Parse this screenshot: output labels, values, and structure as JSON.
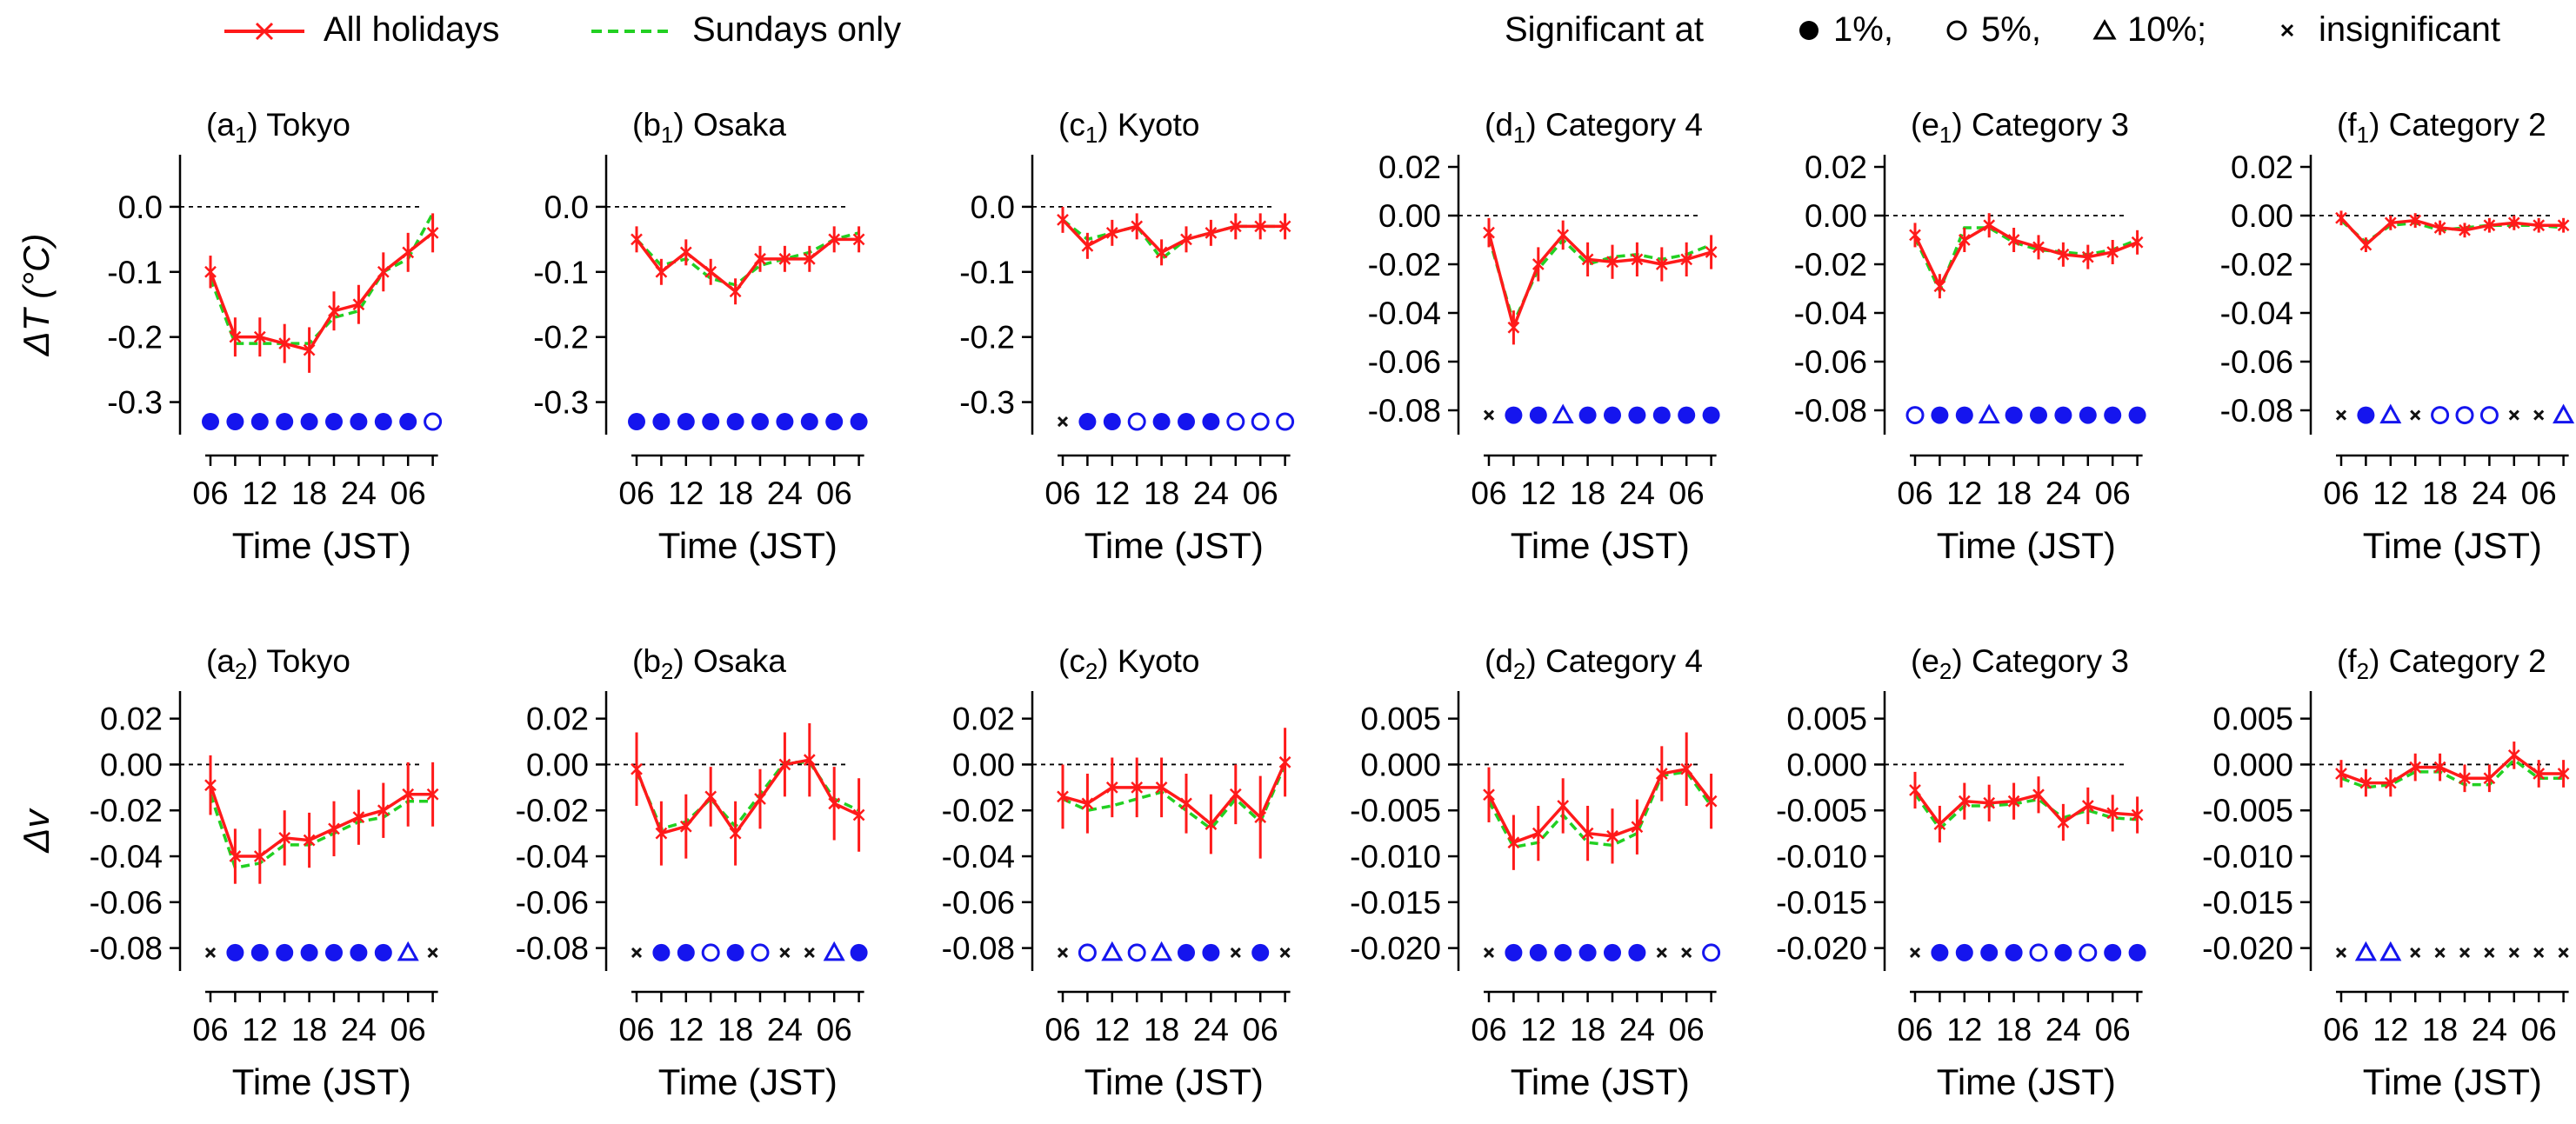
{
  "legend": {
    "all_holidays": "All holidays",
    "sundays_only": "Sundays only",
    "significant_prefix": "Significant at",
    "sig_1": "1%,",
    "sig_5": "5%,",
    "sig_10": "10%;",
    "sig_none": "insignificant"
  },
  "colors": {
    "all_holidays": "#ff1a1a",
    "sundays_only": "#22d022",
    "marker": "#1515ee",
    "insignificant": "#111111",
    "axis": "#000000"
  },
  "x_tick_labels": [
    "06",
    "12",
    "18",
    "24",
    "06"
  ],
  "chart_data": [
    {
      "id": "a1",
      "type": "line",
      "panel_letter": "a",
      "panel_sub": "1",
      "title": "Tokyo",
      "xlabel": "Time (JST)",
      "ylabel": "ΔT (°C)",
      "ylim": [
        -0.35,
        0.08
      ],
      "yticks": [
        0.0,
        -0.1,
        -0.2,
        -0.3
      ],
      "ytick_labels": [
        "0.0",
        "-0.1",
        "-0.2",
        "-0.3"
      ],
      "sig_level": -0.33,
      "x": [
        1,
        2,
        3,
        4,
        5,
        6,
        7,
        8,
        9,
        10
      ],
      "series": [
        {
          "name": "All holidays",
          "values": [
            -0.1,
            -0.2,
            -0.2,
            -0.21,
            -0.22,
            -0.16,
            -0.15,
            -0.1,
            -0.07,
            -0.04
          ],
          "errors": [
            0.025,
            0.03,
            0.03,
            0.03,
            0.035,
            0.03,
            0.03,
            0.03,
            0.03,
            0.03
          ]
        },
        {
          "name": "Sundays only",
          "values": [
            -0.11,
            -0.21,
            -0.21,
            -0.21,
            -0.21,
            -0.17,
            -0.16,
            -0.1,
            -0.08,
            -0.01
          ]
        }
      ],
      "significance": [
        "1%",
        "1%",
        "1%",
        "1%",
        "1%",
        "1%",
        "1%",
        "1%",
        "1%",
        "5%"
      ]
    },
    {
      "id": "b1",
      "type": "line",
      "panel_letter": "b",
      "panel_sub": "1",
      "title": "Osaka",
      "xlabel": "Time (JST)",
      "ylabel": "",
      "ylim": [
        -0.35,
        0.08
      ],
      "yticks": [
        0.0,
        -0.1,
        -0.2,
        -0.3
      ],
      "ytick_labels": [
        "0.0",
        "-0.1",
        "-0.2",
        "-0.3"
      ],
      "sig_level": -0.33,
      "x": [
        1,
        2,
        3,
        4,
        5,
        6,
        7,
        8,
        9,
        10
      ],
      "series": [
        {
          "name": "All holidays",
          "values": [
            -0.05,
            -0.1,
            -0.07,
            -0.1,
            -0.13,
            -0.08,
            -0.08,
            -0.08,
            -0.05,
            -0.05
          ],
          "errors": [
            0.02,
            0.02,
            0.02,
            0.02,
            0.02,
            0.02,
            0.02,
            0.02,
            0.02,
            0.02
          ]
        },
        {
          "name": "Sundays only",
          "values": [
            -0.05,
            -0.09,
            -0.08,
            -0.11,
            -0.12,
            -0.09,
            -0.08,
            -0.07,
            -0.05,
            -0.04
          ]
        }
      ],
      "significance": [
        "1%",
        "1%",
        "1%",
        "1%",
        "1%",
        "1%",
        "1%",
        "1%",
        "1%",
        "1%"
      ]
    },
    {
      "id": "c1",
      "type": "line",
      "panel_letter": "c",
      "panel_sub": "1",
      "title": "Kyoto",
      "xlabel": "Time (JST)",
      "ylabel": "",
      "ylim": [
        -0.35,
        0.08
      ],
      "yticks": [
        0.0,
        -0.1,
        -0.2,
        -0.3
      ],
      "ytick_labels": [
        "0.0",
        "-0.1",
        "-0.2",
        "-0.3"
      ],
      "sig_level": -0.33,
      "x": [
        1,
        2,
        3,
        4,
        5,
        6,
        7,
        8,
        9,
        10
      ],
      "series": [
        {
          "name": "All holidays",
          "values": [
            -0.02,
            -0.06,
            -0.04,
            -0.03,
            -0.07,
            -0.05,
            -0.04,
            -0.03,
            -0.03,
            -0.03
          ],
          "errors": [
            0.02,
            0.02,
            0.02,
            0.02,
            0.02,
            0.02,
            0.02,
            0.02,
            0.02,
            0.02
          ]
        },
        {
          "name": "Sundays only",
          "values": [
            -0.02,
            -0.05,
            -0.04,
            -0.03,
            -0.08,
            -0.05,
            -0.04,
            -0.03,
            -0.03,
            -0.03
          ]
        }
      ],
      "significance": [
        "none",
        "1%",
        "1%",
        "5%",
        "1%",
        "1%",
        "1%",
        "5%",
        "5%",
        "5%"
      ]
    },
    {
      "id": "d1",
      "type": "line",
      "panel_letter": "d",
      "panel_sub": "1",
      "title": "Category 4",
      "xlabel": "Time (JST)",
      "ylabel": "",
      "ylim": [
        -0.09,
        0.025
      ],
      "yticks": [
        0.02,
        0.0,
        -0.02,
        -0.04,
        -0.06,
        -0.08
      ],
      "ytick_labels": [
        "0.02",
        "0.00",
        "-0.02",
        "-0.04",
        "-0.06",
        "-0.08"
      ],
      "sig_level": -0.082,
      "x": [
        1,
        2,
        3,
        4,
        5,
        6,
        7,
        8,
        9,
        10
      ],
      "series": [
        {
          "name": "All holidays",
          "values": [
            -0.007,
            -0.046,
            -0.02,
            -0.008,
            -0.018,
            -0.019,
            -0.018,
            -0.02,
            -0.018,
            -0.015
          ],
          "errors": [
            0.006,
            0.007,
            0.007,
            0.006,
            0.007,
            0.007,
            0.007,
            0.007,
            0.007,
            0.007
          ]
        },
        {
          "name": "Sundays only",
          "values": [
            -0.009,
            -0.044,
            -0.022,
            -0.01,
            -0.02,
            -0.017,
            -0.016,
            -0.018,
            -0.016,
            -0.012
          ]
        }
      ],
      "significance": [
        "none",
        "1%",
        "1%",
        "10%",
        "1%",
        "1%",
        "1%",
        "1%",
        "1%",
        "1%"
      ]
    },
    {
      "id": "e1",
      "type": "line",
      "panel_letter": "e",
      "panel_sub": "1",
      "title": "Category 3",
      "xlabel": "Time (JST)",
      "ylabel": "",
      "ylim": [
        -0.09,
        0.025
      ],
      "yticks": [
        0.02,
        0.0,
        -0.02,
        -0.04,
        -0.06,
        -0.08
      ],
      "ytick_labels": [
        "0.02",
        "0.00",
        "-0.02",
        "-0.04",
        "-0.06",
        "-0.08"
      ],
      "sig_level": -0.082,
      "x": [
        1,
        2,
        3,
        4,
        5,
        6,
        7,
        8,
        9,
        10
      ],
      "series": [
        {
          "name": "All holidays",
          "values": [
            -0.008,
            -0.029,
            -0.01,
            -0.004,
            -0.01,
            -0.013,
            -0.016,
            -0.017,
            -0.015,
            -0.011
          ],
          "errors": [
            0.005,
            0.005,
            0.005,
            0.005,
            0.005,
            0.005,
            0.005,
            0.005,
            0.005,
            0.005
          ]
        },
        {
          "name": "Sundays only",
          "values": [
            -0.009,
            -0.031,
            -0.005,
            -0.005,
            -0.011,
            -0.014,
            -0.015,
            -0.016,
            -0.014,
            -0.01
          ]
        }
      ],
      "significance": [
        "5%",
        "1%",
        "1%",
        "10%",
        "1%",
        "1%",
        "1%",
        "1%",
        "1%",
        "1%"
      ]
    },
    {
      "id": "f1",
      "type": "line",
      "panel_letter": "f",
      "panel_sub": "1",
      "title": "Category 2",
      "xlabel": "Time (JST)",
      "ylabel": "",
      "ylim": [
        -0.09,
        0.025
      ],
      "yticks": [
        0.02,
        0.0,
        -0.02,
        -0.04,
        -0.06,
        -0.08
      ],
      "ytick_labels": [
        "0.02",
        "0.00",
        "-0.02",
        "-0.04",
        "-0.06",
        "-0.08"
      ],
      "sig_level": -0.082,
      "x": [
        1,
        2,
        3,
        4,
        5,
        6,
        7,
        8,
        9,
        10
      ],
      "series": [
        {
          "name": "All holidays",
          "values": [
            -0.001,
            -0.012,
            -0.003,
            -0.002,
            -0.005,
            -0.006,
            -0.004,
            -0.003,
            -0.004,
            -0.004
          ],
          "errors": [
            0.003,
            0.003,
            0.003,
            0.003,
            0.003,
            0.003,
            0.003,
            0.003,
            0.003,
            0.003
          ]
        },
        {
          "name": "Sundays only",
          "values": [
            -0.002,
            -0.011,
            -0.004,
            -0.003,
            -0.006,
            -0.005,
            -0.004,
            -0.004,
            -0.004,
            -0.005
          ]
        }
      ],
      "significance": [
        "none",
        "1%",
        "10%",
        "none",
        "5%",
        "5%",
        "5%",
        "none",
        "none",
        "10%"
      ]
    },
    {
      "id": "a2",
      "type": "line",
      "panel_letter": "a",
      "panel_sub": "2",
      "title": "Tokyo",
      "xlabel": "Time (JST)",
      "ylabel": "Δv",
      "ylim": [
        -0.09,
        0.032
      ],
      "yticks": [
        0.02,
        0.0,
        -0.02,
        -0.04,
        -0.06,
        -0.08
      ],
      "ytick_labels": [
        "0.02",
        "0.00",
        "-0.02",
        "-0.04",
        "-0.06",
        "-0.08"
      ],
      "sig_level": -0.082,
      "x": [
        1,
        2,
        3,
        4,
        5,
        6,
        7,
        8,
        9,
        10
      ],
      "series": [
        {
          "name": "All holidays",
          "values": [
            -0.009,
            -0.04,
            -0.04,
            -0.032,
            -0.033,
            -0.028,
            -0.023,
            -0.02,
            -0.013,
            -0.013
          ],
          "errors": [
            0.013,
            0.012,
            0.012,
            0.012,
            0.012,
            0.012,
            0.012,
            0.012,
            0.014,
            0.014
          ]
        },
        {
          "name": "Sundays only",
          "values": [
            -0.013,
            -0.045,
            -0.043,
            -0.035,
            -0.035,
            -0.03,
            -0.025,
            -0.023,
            -0.016,
            -0.016
          ]
        }
      ],
      "significance": [
        "none",
        "1%",
        "1%",
        "1%",
        "1%",
        "1%",
        "1%",
        "1%",
        "10%",
        "none"
      ]
    },
    {
      "id": "b2",
      "type": "line",
      "panel_letter": "b",
      "panel_sub": "2",
      "title": "Osaka",
      "xlabel": "Time (JST)",
      "ylabel": "",
      "ylim": [
        -0.09,
        0.032
      ],
      "yticks": [
        0.02,
        0.0,
        -0.02,
        -0.04,
        -0.06,
        -0.08
      ],
      "ytick_labels": [
        "0.02",
        "0.00",
        "-0.02",
        "-0.04",
        "-0.06",
        "-0.08"
      ],
      "sig_level": -0.082,
      "x": [
        1,
        2,
        3,
        4,
        5,
        6,
        7,
        8,
        9,
        10
      ],
      "series": [
        {
          "name": "All holidays",
          "values": [
            -0.002,
            -0.03,
            -0.027,
            -0.014,
            -0.03,
            -0.015,
            0.0,
            0.002,
            -0.017,
            -0.022
          ],
          "errors": [
            0.016,
            0.014,
            0.014,
            0.013,
            0.014,
            0.013,
            0.014,
            0.016,
            0.016,
            0.016
          ]
        },
        {
          "name": "Sundays only",
          "values": [
            -0.003,
            -0.028,
            -0.025,
            -0.015,
            -0.027,
            -0.013,
            0.001,
            0.001,
            -0.015,
            -0.02
          ]
        }
      ],
      "significance": [
        "none",
        "1%",
        "1%",
        "5%",
        "1%",
        "5%",
        "none",
        "none",
        "10%",
        "1%"
      ]
    },
    {
      "id": "c2",
      "type": "line",
      "panel_letter": "c",
      "panel_sub": "2",
      "title": "Kyoto",
      "xlabel": "Time (JST)",
      "ylabel": "",
      "ylim": [
        -0.09,
        0.032
      ],
      "yticks": [
        0.02,
        0.0,
        -0.02,
        -0.04,
        -0.06,
        -0.08
      ],
      "ytick_labels": [
        "0.02",
        "0.00",
        "-0.02",
        "-0.04",
        "-0.06",
        "-0.08"
      ],
      "sig_level": -0.082,
      "x": [
        1,
        2,
        3,
        4,
        5,
        6,
        7,
        8,
        9,
        10
      ],
      "series": [
        {
          "name": "All holidays",
          "values": [
            -0.014,
            -0.017,
            -0.01,
            -0.01,
            -0.01,
            -0.017,
            -0.026,
            -0.013,
            -0.023,
            0.001
          ],
          "errors": [
            0.014,
            0.013,
            0.013,
            0.013,
            0.013,
            0.013,
            0.013,
            0.013,
            0.018,
            0.015
          ]
        },
        {
          "name": "Sundays only",
          "values": [
            -0.015,
            -0.02,
            -0.018,
            -0.015,
            -0.012,
            -0.02,
            -0.028,
            -0.015,
            -0.025,
            0.0
          ]
        }
      ],
      "significance": [
        "none",
        "5%",
        "10%",
        "5%",
        "10%",
        "1%",
        "1%",
        "none",
        "1%",
        "none"
      ]
    },
    {
      "id": "d2",
      "type": "line",
      "panel_letter": "d",
      "panel_sub": "2",
      "title": "Category 4",
      "xlabel": "Time (JST)",
      "ylabel": "",
      "ylim": [
        -0.0225,
        0.008
      ],
      "yticks": [
        0.005,
        0.0,
        -0.005,
        -0.01,
        -0.015,
        -0.02
      ],
      "ytick_labels": [
        "0.005",
        "0.000",
        "-0.005",
        "-0.010",
        "-0.015",
        "-0.020"
      ],
      "sig_level": -0.0205,
      "x": [
        1,
        2,
        3,
        4,
        5,
        6,
        7,
        8,
        9,
        10
      ],
      "series": [
        {
          "name": "All holidays",
          "values": [
            -0.0033,
            -0.0085,
            -0.0075,
            -0.0045,
            -0.0075,
            -0.0078,
            -0.0068,
            -0.001,
            -0.0005,
            -0.004
          ],
          "errors": [
            0.003,
            0.003,
            0.003,
            0.003,
            0.003,
            0.003,
            0.003,
            0.003,
            0.004,
            0.003
          ]
        },
        {
          "name": "Sundays only",
          "values": [
            -0.004,
            -0.009,
            -0.0085,
            -0.0055,
            -0.0085,
            -0.0088,
            -0.0075,
            -0.0012,
            -0.0008,
            -0.0045
          ]
        }
      ],
      "significance": [
        "none",
        "1%",
        "1%",
        "1%",
        "1%",
        "1%",
        "1%",
        "none",
        "none",
        "5%"
      ]
    },
    {
      "id": "e2",
      "type": "line",
      "panel_letter": "e",
      "panel_sub": "2",
      "title": "Category 3",
      "xlabel": "Time (JST)",
      "ylabel": "",
      "ylim": [
        -0.0225,
        0.008
      ],
      "yticks": [
        0.005,
        0.0,
        -0.005,
        -0.01,
        -0.015,
        -0.02
      ],
      "ytick_labels": [
        "0.005",
        "0.000",
        "-0.005",
        "-0.010",
        "-0.015",
        "-0.020"
      ],
      "sig_level": -0.0205,
      "x": [
        1,
        2,
        3,
        4,
        5,
        6,
        7,
        8,
        9,
        10
      ],
      "series": [
        {
          "name": "All holidays",
          "values": [
            -0.0028,
            -0.0065,
            -0.004,
            -0.0042,
            -0.004,
            -0.0033,
            -0.0063,
            -0.0045,
            -0.0053,
            -0.0055
          ],
          "errors": [
            0.002,
            0.002,
            0.002,
            0.002,
            0.002,
            0.002,
            0.002,
            0.002,
            0.002,
            0.002
          ]
        },
        {
          "name": "Sundays only",
          "values": [
            -0.0032,
            -0.007,
            -0.0045,
            -0.0045,
            -0.0043,
            -0.0038,
            -0.0058,
            -0.005,
            -0.0058,
            -0.006
          ]
        }
      ],
      "significance": [
        "none",
        "1%",
        "1%",
        "1%",
        "1%",
        "5%",
        "1%",
        "5%",
        "1%",
        "1%"
      ]
    },
    {
      "id": "f2",
      "type": "line",
      "panel_letter": "f",
      "panel_sub": "2",
      "title": "Category 2",
      "xlabel": "Time (JST)",
      "ylabel": "",
      "ylim": [
        -0.0225,
        0.008
      ],
      "yticks": [
        0.005,
        0.0,
        -0.005,
        -0.01,
        -0.015,
        -0.02
      ],
      "ytick_labels": [
        "0.005",
        "0.000",
        "-0.005",
        "-0.010",
        "-0.015",
        "-0.020"
      ],
      "sig_level": -0.0205,
      "x": [
        1,
        2,
        3,
        4,
        5,
        6,
        7,
        8,
        9,
        10
      ],
      "series": [
        {
          "name": "All holidays",
          "values": [
            -0.001,
            -0.002,
            -0.002,
            -0.0003,
            -0.0003,
            -0.0015,
            -0.0015,
            0.001,
            -0.001,
            -0.001
          ],
          "errors": [
            0.0015,
            0.0015,
            0.0015,
            0.0015,
            0.0015,
            0.0015,
            0.0015,
            0.0015,
            0.0015,
            0.0015
          ]
        },
        {
          "name": "Sundays only",
          "values": [
            -0.0015,
            -0.0025,
            -0.0022,
            -0.0008,
            -0.0008,
            -0.0022,
            -0.0022,
            0.0005,
            -0.0015,
            -0.0015
          ]
        }
      ],
      "significance": [
        "none",
        "10%",
        "10%",
        "none",
        "none",
        "none",
        "none",
        "none",
        "none",
        "none"
      ]
    }
  ]
}
